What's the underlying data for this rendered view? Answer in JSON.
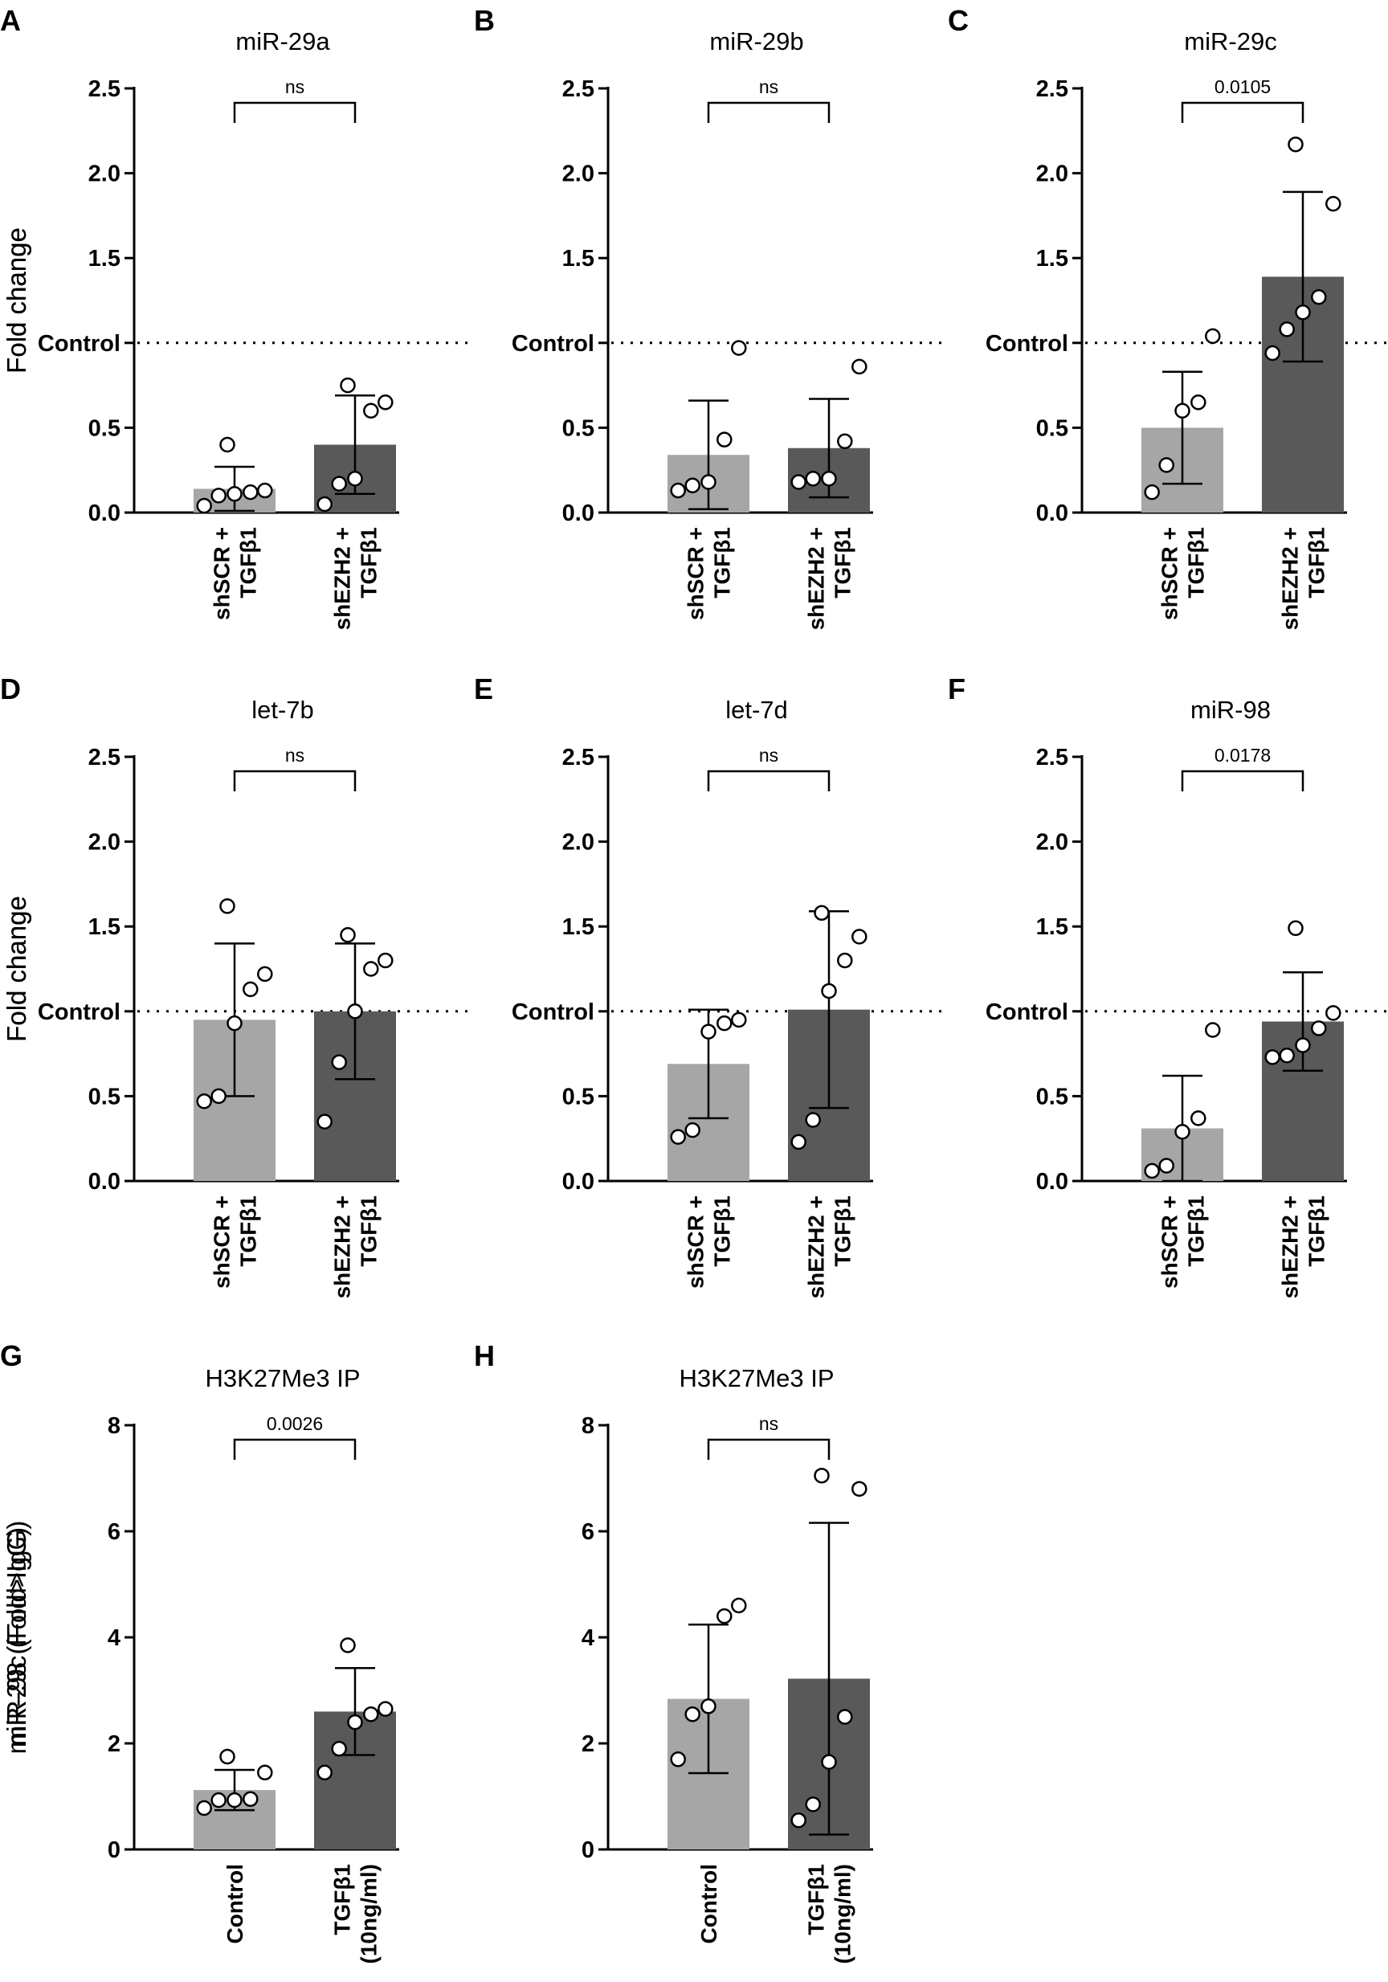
{
  "chart_data": [
    {
      "type": "bar",
      "panel": "A",
      "title": "miR-29a",
      "ylabel": "Fold change",
      "ylim": [
        0,
        2.5
      ],
      "yticks": [
        "0.0",
        "0.5",
        "Control",
        "1.5",
        "2.0",
        "2.5"
      ],
      "reference_line": {
        "y": 1.0,
        "label": "Control",
        "style": "dotted"
      },
      "categories": [
        [
          "shSCR +",
          "TGFβ1"
        ],
        [
          "shEZH2 +",
          "TGFβ1"
        ]
      ],
      "values": [
        0.14,
        0.4
      ],
      "error": [
        0.13,
        0.29
      ],
      "points": [
        [
          0.04,
          0.1,
          0.11,
          0.12,
          0.13,
          0.4
        ],
        [
          0.05,
          0.17,
          0.2,
          0.6,
          0.65,
          0.75
        ]
      ],
      "bar_colors": [
        "#a6a6a6",
        "#595959"
      ],
      "significance": "ns"
    },
    {
      "type": "bar",
      "panel": "B",
      "title": "miR-29b",
      "ylabel": "Fold change",
      "ylim": [
        0,
        2.5
      ],
      "yticks": [
        "0.0",
        "0.5",
        "Control",
        "1.5",
        "2.0",
        "2.5"
      ],
      "reference_line": {
        "y": 1.0,
        "label": "Control",
        "style": "dotted"
      },
      "categories": [
        [
          "shSCR +",
          "TGFβ1"
        ],
        [
          "shEZH2 +",
          "TGFβ1"
        ]
      ],
      "values": [
        0.34,
        0.38
      ],
      "error": [
        0.32,
        0.29
      ],
      "points": [
        [
          0.13,
          0.16,
          0.18,
          0.43,
          0.97
        ],
        [
          0.18,
          0.2,
          0.2,
          0.42,
          0.86
        ]
      ],
      "bar_colors": [
        "#a6a6a6",
        "#595959"
      ],
      "significance": "ns"
    },
    {
      "type": "bar",
      "panel": "C",
      "title": "miR-29c",
      "ylabel": "Fold change",
      "ylim": [
        0,
        2.5
      ],
      "yticks": [
        "0.0",
        "0.5",
        "Control",
        "1.5",
        "2.0",
        "2.5"
      ],
      "reference_line": {
        "y": 1.0,
        "label": "Control",
        "style": "dotted"
      },
      "categories": [
        [
          "shSCR +",
          "TGFβ1"
        ],
        [
          "shEZH2 +",
          "TGFβ1"
        ]
      ],
      "values": [
        0.5,
        1.39
      ],
      "error": [
        0.33,
        0.5
      ],
      "points": [
        [
          0.12,
          0.28,
          0.6,
          0.65,
          1.04
        ],
        [
          0.94,
          1.08,
          1.18,
          1.27,
          1.82,
          2.17
        ]
      ],
      "bar_colors": [
        "#a6a6a6",
        "#595959"
      ],
      "significance": "0.0105"
    },
    {
      "type": "bar",
      "panel": "D",
      "title": "let-7b",
      "ylabel": "Fold change",
      "ylim": [
        0,
        2.5
      ],
      "yticks": [
        "0.0",
        "0.5",
        "Control",
        "1.5",
        "2.0",
        "2.5"
      ],
      "reference_line": {
        "y": 1.0,
        "label": "Control",
        "style": "dotted"
      },
      "categories": [
        [
          "shSCR +",
          "TGFβ1"
        ],
        [
          "shEZH2 +",
          "TGFβ1"
        ]
      ],
      "values": [
        0.95,
        1.0
      ],
      "error": [
        0.45,
        0.4
      ],
      "points": [
        [
          0.47,
          0.5,
          0.93,
          1.13,
          1.22,
          1.62
        ],
        [
          0.35,
          0.7,
          1.0,
          1.25,
          1.3,
          1.45
        ]
      ],
      "bar_colors": [
        "#a6a6a6",
        "#595959"
      ],
      "significance": "ns"
    },
    {
      "type": "bar",
      "panel": "E",
      "title": "let-7d",
      "ylabel": "Fold change",
      "ylim": [
        0,
        2.5
      ],
      "yticks": [
        "0.0",
        "0.5",
        "Control",
        "1.5",
        "2.0",
        "2.5"
      ],
      "reference_line": {
        "y": 1.0,
        "label": "Control",
        "style": "dotted"
      },
      "categories": [
        [
          "shSCR +",
          "TGFβ1"
        ],
        [
          "shEZH2 +",
          "TGFβ1"
        ]
      ],
      "values": [
        0.69,
        1.01
      ],
      "error": [
        0.32,
        0.58
      ],
      "points": [
        [
          0.26,
          0.3,
          0.88,
          0.93,
          0.95
        ],
        [
          0.23,
          0.36,
          1.12,
          1.3,
          1.44,
          1.58
        ]
      ],
      "bar_colors": [
        "#a6a6a6",
        "#595959"
      ],
      "significance": "ns"
    },
    {
      "type": "bar",
      "panel": "F",
      "title": "miR-98",
      "ylabel": "Fold change",
      "ylim": [
        0,
        2.5
      ],
      "yticks": [
        "0.0",
        "0.5",
        "Control",
        "1.5",
        "2.0",
        "2.5"
      ],
      "reference_line": {
        "y": 1.0,
        "label": "Control",
        "style": "dotted"
      },
      "categories": [
        [
          "shSCR +",
          "TGFβ1"
        ],
        [
          "shEZH2 +",
          "TGFβ1"
        ]
      ],
      "values": [
        0.31,
        0.94
      ],
      "error": [
        0.31,
        0.29
      ],
      "points": [
        [
          0.06,
          0.09,
          0.29,
          0.37,
          0.89
        ],
        [
          0.73,
          0.74,
          0.8,
          0.9,
          0.99,
          1.49
        ]
      ],
      "bar_colors": [
        "#a6a6a6",
        "#595959"
      ],
      "significance": "0.0178"
    },
    {
      "type": "bar",
      "panel": "G",
      "title": "H3K27Me3 IP",
      "ylabel": "miR-29c (Fold>IgG)",
      "ylim": [
        0,
        8
      ],
      "yticks": [
        "0",
        "2",
        "4",
        "6",
        "8"
      ],
      "categories": [
        [
          "Control"
        ],
        [
          "TGFβ1",
          "(10ng/ml)"
        ]
      ],
      "values": [
        1.12,
        2.6
      ],
      "error": [
        0.38,
        0.82
      ],
      "points": [
        [
          0.78,
          0.93,
          0.93,
          0.95,
          1.45,
          1.75
        ],
        [
          1.45,
          1.9,
          2.4,
          2.55,
          2.65,
          3.85
        ]
      ],
      "bar_colors": [
        "#a6a6a6",
        "#595959"
      ],
      "significance": "0.0026"
    },
    {
      "type": "bar",
      "panel": "H",
      "title": "H3K27Me3 IP",
      "ylabel": "miR-98 (Fold>IgG)",
      "ylim": [
        0,
        8
      ],
      "yticks": [
        "0",
        "2",
        "4",
        "6",
        "8"
      ],
      "categories": [
        [
          "Control"
        ],
        [
          "TGFβ1",
          "(10ng/ml)"
        ]
      ],
      "values": [
        2.84,
        3.22
      ],
      "error": [
        1.4,
        2.94
      ],
      "points": [
        [
          1.7,
          2.55,
          2.7,
          4.4,
          4.6
        ],
        [
          0.55,
          0.85,
          1.65,
          2.5,
          6.8,
          7.05
        ]
      ],
      "bar_colors": [
        "#a6a6a6",
        "#595959"
      ],
      "significance": "ns"
    }
  ]
}
